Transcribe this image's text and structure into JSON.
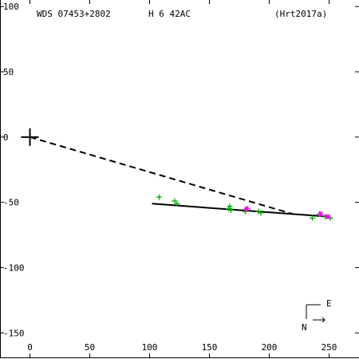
{
  "header": {
    "left": "WDS 07453+2802",
    "center": "H 6  42AC",
    "right": "(Hrt2017a)"
  },
  "orientation": {
    "north_label": "N",
    "east_label": "E"
  },
  "colors": {
    "observations": "#00aa00",
    "highlight": "#ff00ff",
    "orbit_line": "#000000",
    "frame": "#000000",
    "background": "#ffffff"
  },
  "chart_data": {
    "type": "scatter",
    "xlim": [
      -25,
      275
    ],
    "ylim": [
      -170,
      105
    ],
    "y_inverted": true,
    "x_ticks": [
      0,
      50,
      100,
      150,
      200,
      250
    ],
    "y_ticks": [
      100,
      50,
      0,
      -50,
      -100,
      -150
    ],
    "x_tick_labels": [
      "0",
      "50",
      "100",
      "150",
      "200",
      "250"
    ],
    "y_tick_labels": [
      "100",
      "50",
      "0",
      "-50",
      "-100",
      "-150"
    ],
    "primary": {
      "x": 0,
      "y": 0
    },
    "series": [
      {
        "marker": "plus",
        "color": "#00aa00",
        "points": [
          [
            108,
            -46
          ],
          [
            121,
            -49
          ],
          [
            123,
            -51
          ],
          [
            166,
            -55
          ],
          [
            167,
            -53
          ],
          [
            168,
            -56
          ],
          [
            180,
            -57
          ],
          [
            182,
            -55
          ],
          [
            191,
            -57
          ],
          [
            193,
            -58
          ],
          [
            236,
            -62
          ],
          [
            242,
            -59
          ],
          [
            247,
            -61
          ],
          [
            251,
            -62
          ]
        ]
      },
      {
        "marker": "asterisk",
        "color": "#ff00ff",
        "points": [
          [
            181,
            -55
          ],
          [
            243,
            -59
          ],
          [
            249,
            -61
          ]
        ]
      }
    ],
    "lines": [
      {
        "style": "dashed",
        "from": [
          0,
          0
        ],
        "to": [
          220,
          -59
        ]
      },
      {
        "style": "solid",
        "from": [
          102,
          -51
        ],
        "to": [
          250,
          -61
        ]
      }
    ]
  }
}
